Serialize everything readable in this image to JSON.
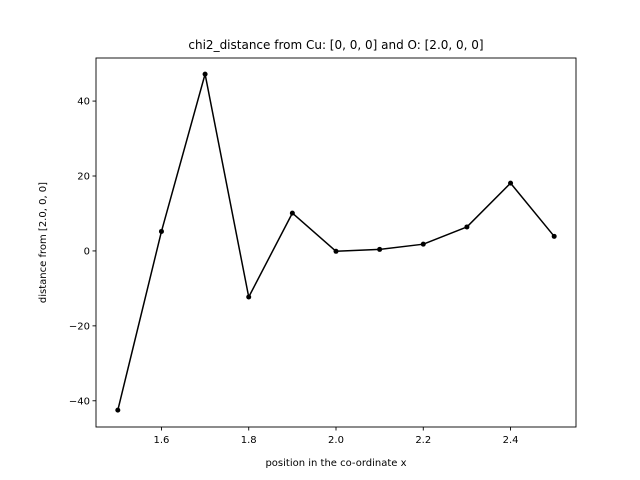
{
  "chart_data": {
    "type": "line",
    "title": "chi2_distance from Cu: [0, 0, 0] and O: [2.0, 0, 0]",
    "xlabel": "position in the co-ordinate x",
    "ylabel": "distance from [2.0, 0, 0]",
    "x": [
      1.5,
      1.6,
      1.7,
      1.8,
      1.9,
      2.0,
      2.1,
      2.2,
      2.3,
      2.4,
      2.5
    ],
    "series": [
      {
        "values": [
          -42.5,
          5.2,
          47.2,
          -12.3,
          10.1,
          -0.1,
          0.4,
          1.8,
          6.4,
          18.1,
          3.9
        ],
        "color": "#000000",
        "marker": "dot"
      }
    ],
    "xlim": [
      1.45,
      2.55
    ],
    "ylim": [
      -47,
      51.5
    ],
    "xticks": [
      1.6,
      1.8,
      2.0,
      2.2,
      2.4
    ],
    "xtick_labels": [
      "1.6",
      "1.8",
      "2.0",
      "2.2",
      "2.4"
    ],
    "yticks": [
      -40,
      -20,
      0,
      20,
      40
    ],
    "ytick_labels": [
      "−40",
      "−20",
      "0",
      "20",
      "40"
    ],
    "grid": false,
    "legend": false
  }
}
